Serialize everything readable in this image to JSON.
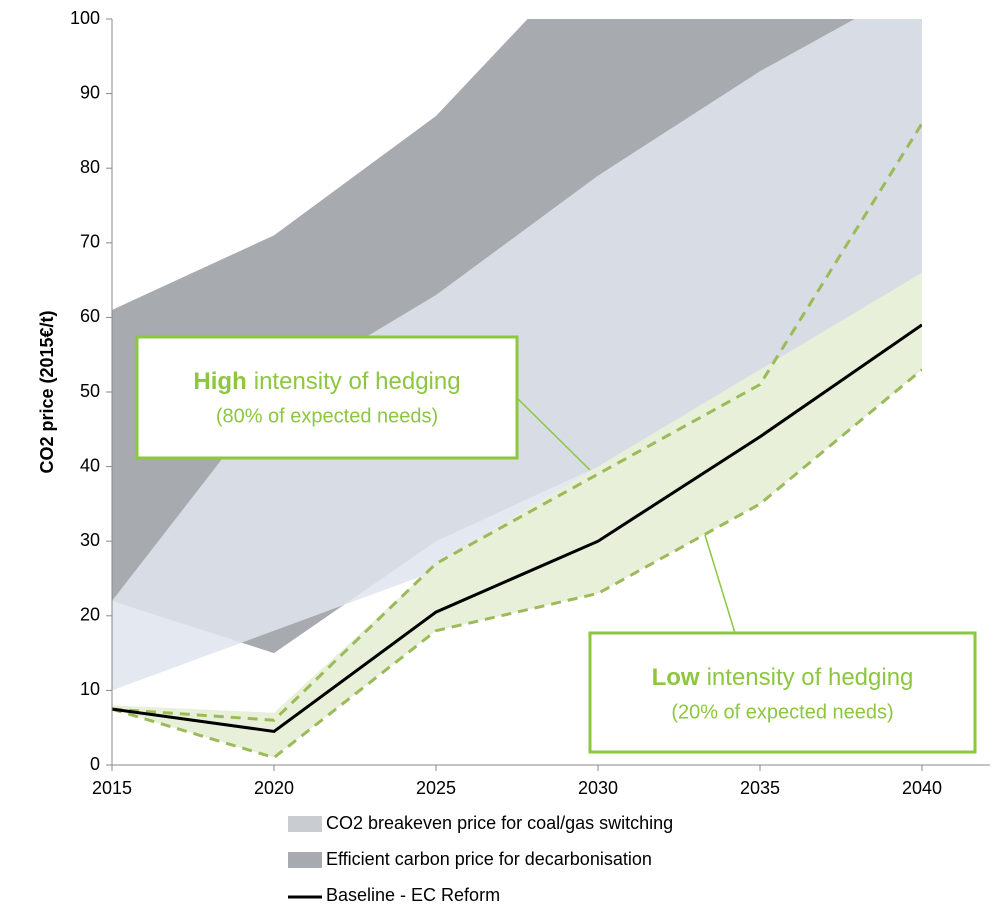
{
  "chart_data": {
    "type": "line",
    "ylabel": "CO2 price (2015€/t)",
    "x": [
      2015,
      2020,
      2025,
      2030,
      2035,
      2040
    ],
    "xlim": [
      2015,
      2040
    ],
    "ylim": [
      0,
      100
    ],
    "xticks": [
      2015,
      2020,
      2025,
      2030,
      2035,
      2040
    ],
    "yticks": [
      0,
      10,
      20,
      30,
      40,
      50,
      60,
      70,
      80,
      90,
      100
    ],
    "bands": [
      {
        "name": "CO2 breakeven price for coal/gas switching",
        "color": "#dfe5ee",
        "low": [
          10,
          18,
          26,
          36,
          48,
          64
        ],
        "high": [
          22,
          50,
          63,
          79,
          93,
          105
        ]
      },
      {
        "name": "Efficient carbon price for decarbonisation",
        "color": "#a7aaaf",
        "low": [
          22,
          15,
          30,
          40,
          53,
          65
        ],
        "high": [
          61,
          71,
          87,
          110,
          120,
          130
        ]
      },
      {
        "color": "#e9f0da",
        "low": [
          7.5,
          1,
          18,
          23,
          35,
          53
        ],
        "high": [
          8,
          7,
          27,
          40,
          53,
          66
        ]
      }
    ],
    "series": [
      {
        "color": "#9bbb59",
        "dash": true,
        "values": [
          7.5,
          6,
          27,
          39,
          51,
          86
        ]
      },
      {
        "color": "#9bbb59",
        "dash": true,
        "values": [
          7.5,
          1,
          18,
          23,
          35,
          53
        ]
      },
      {
        "name": "Baseline - EC Reform",
        "color": "#000000",
        "values": [
          7.5,
          4.5,
          20.5,
          30,
          44,
          59
        ]
      }
    ],
    "annotations": [
      {
        "bold": "High",
        "text": "intensity of hedging",
        "note": "(80% of expected needs)"
      },
      {
        "bold": "Low",
        "text": "intensity of hedging",
        "note": "(20% of expected needs)"
      }
    ]
  }
}
